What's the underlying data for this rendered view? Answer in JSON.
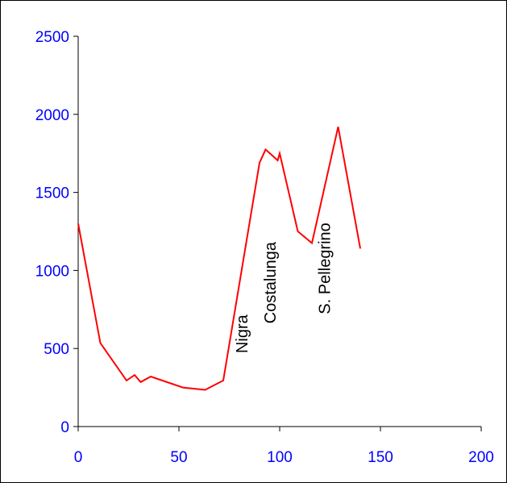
{
  "chart_data": {
    "type": "line",
    "title": "",
    "xlabel": "",
    "ylabel": "",
    "xlim": [
      0,
      200
    ],
    "ylim": [
      0,
      2500
    ],
    "x_ticks": [
      0,
      50,
      100,
      150,
      200
    ],
    "y_ticks": [
      0,
      500,
      1000,
      1500,
      2000,
      2500
    ],
    "x_tick_labels": [
      "0",
      "50",
      "100",
      "150",
      "200"
    ],
    "y_tick_labels": [
      "0",
      "500",
      "1000",
      "1500",
      "2000",
      "2500"
    ],
    "grid": false,
    "legend": "none",
    "series": [
      {
        "color": "#ff0000",
        "x": [
          0,
          11,
          24,
          28,
          31,
          36,
          52,
          63,
          72,
          90,
          93,
          99,
          100,
          109,
          116,
          129,
          140
        ],
        "y": [
          1300,
          535,
          295,
          330,
          285,
          320,
          250,
          235,
          295,
          1690,
          1775,
          1705,
          1750,
          1250,
          1175,
          1920,
          1140
        ]
      }
    ],
    "annotations": [
      {
        "text": "Nigra",
        "x": 84,
        "y": 470,
        "rotation": -90
      },
      {
        "text": "Costalunga",
        "x": 98,
        "y": 660,
        "rotation": -90
      },
      {
        "text": "S. Pellegrino",
        "x": 125,
        "y": 720,
        "rotation": -90
      }
    ],
    "colors": {
      "axis_text": "#0000ff",
      "line": "#ff0000",
      "axis": "#000000"
    }
  }
}
